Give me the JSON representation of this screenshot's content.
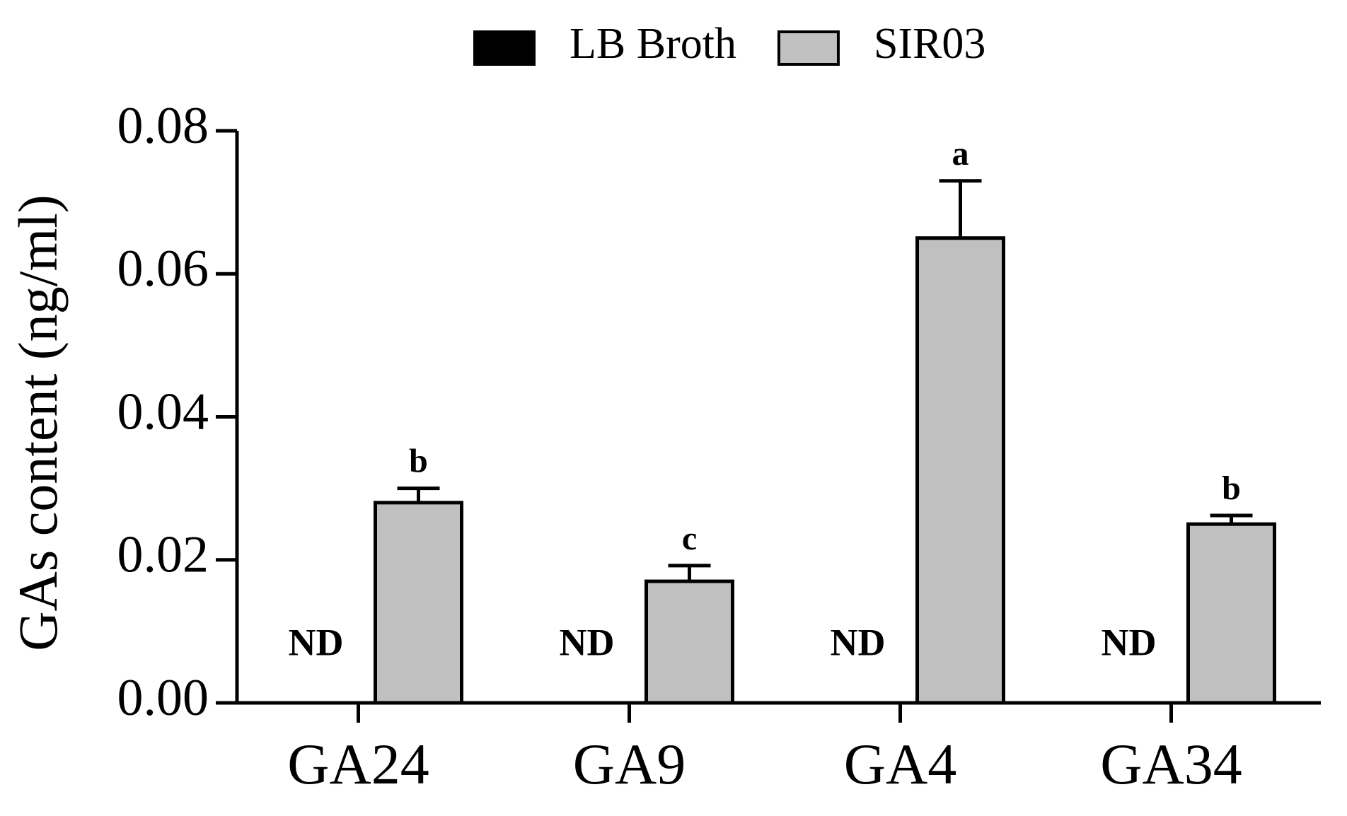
{
  "chart_data": {
    "type": "bar",
    "y_label": "GAs content (ng/ml)",
    "categories": [
      "GA24",
      "GA9",
      "GA4",
      "GA34"
    ],
    "series": [
      {
        "name": "LB Broth",
        "color": "#000000",
        "values": [
          null,
          null,
          null,
          null
        ],
        "value_labels": [
          "ND",
          "ND",
          "ND",
          "ND"
        ]
      },
      {
        "name": "SIR03",
        "color": "#c0c0c0",
        "values": [
          0.028,
          0.017,
          0.065,
          0.025
        ],
        "errors": [
          0.002,
          0.0022,
          0.008,
          0.0012
        ],
        "annotations": [
          "b",
          "c",
          "a",
          "b"
        ]
      }
    ],
    "ylim": [
      0,
      0.08
    ],
    "yticks": [
      {
        "value": 0,
        "label": "0.00"
      },
      {
        "value": 0.02,
        "label": "0.02"
      },
      {
        "value": 0.04,
        "label": "0.04"
      },
      {
        "value": 0.06,
        "label": "0.06"
      },
      {
        "value": 0.08,
        "label": "0.08"
      }
    ],
    "legend": "top",
    "grid": false
  }
}
